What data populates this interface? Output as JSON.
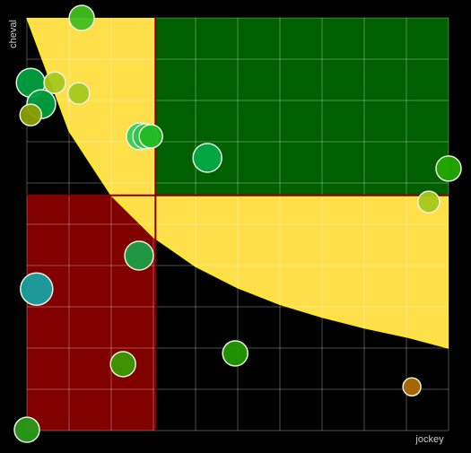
{
  "chart_data": {
    "type": "scatter",
    "x_label": "jockey",
    "y_label": "cheval",
    "xlim": [
      0,
      10
    ],
    "ylim": [
      0,
      10
    ],
    "xticks": [
      0,
      1,
      2,
      3,
      4,
      5,
      6,
      7,
      8,
      9,
      10
    ],
    "yticks": [
      0,
      1,
      2,
      3,
      4,
      5,
      6,
      7,
      8,
      9,
      10
    ],
    "grid": true,
    "x_threshold": 3.05,
    "y_threshold": 5.7,
    "threshold_curve": {
      "x": [
        0,
        1,
        2,
        3,
        4,
        5,
        6,
        7,
        8,
        9,
        10
      ],
      "y": [
        10,
        7.26,
        5.7,
        4.69,
        3.98,
        3.46,
        3.06,
        2.75,
        2.49,
        2.27,
        2.0
      ]
    },
    "region_colors": {
      "low_low": "#800000",
      "high_high": "#006000",
      "above_curve": "#ffe04a"
    },
    "x": [
      1.3,
      0.09,
      0.34,
      0.66,
      1.23,
      0.09,
      2.68,
      2.81,
      2.94,
      4.28,
      10.0,
      9.53,
      2.66,
      0.23,
      4.94,
      2.28,
      9.13,
      0.0
    ],
    "values": [
      10.0,
      8.43,
      7.91,
      8.43,
      8.17,
      7.65,
      7.13,
      7.13,
      7.13,
      6.61,
      6.35,
      5.54,
      4.24,
      3.43,
      1.87,
      1.61,
      1.06,
      0.02
    ],
    "sizes": [
      14,
      16,
      16,
      12,
      12,
      12,
      15,
      14,
      13,
      16,
      14,
      12,
      16,
      18,
      14,
      14,
      10,
      14
    ],
    "colors": [
      "#3fbf1f",
      "#00a040",
      "#00a040",
      "#a8c81a",
      "#a8c81a",
      "#8aa000",
      "#33cc55",
      "#2ec44a",
      "#22bb22",
      "#00aa44",
      "#22aa00",
      "#a8c81a",
      "#1a9e44",
      "#18a0a0",
      "#229900",
      "#3a9900",
      "#b06a00",
      "#2a9a1a"
    ]
  }
}
